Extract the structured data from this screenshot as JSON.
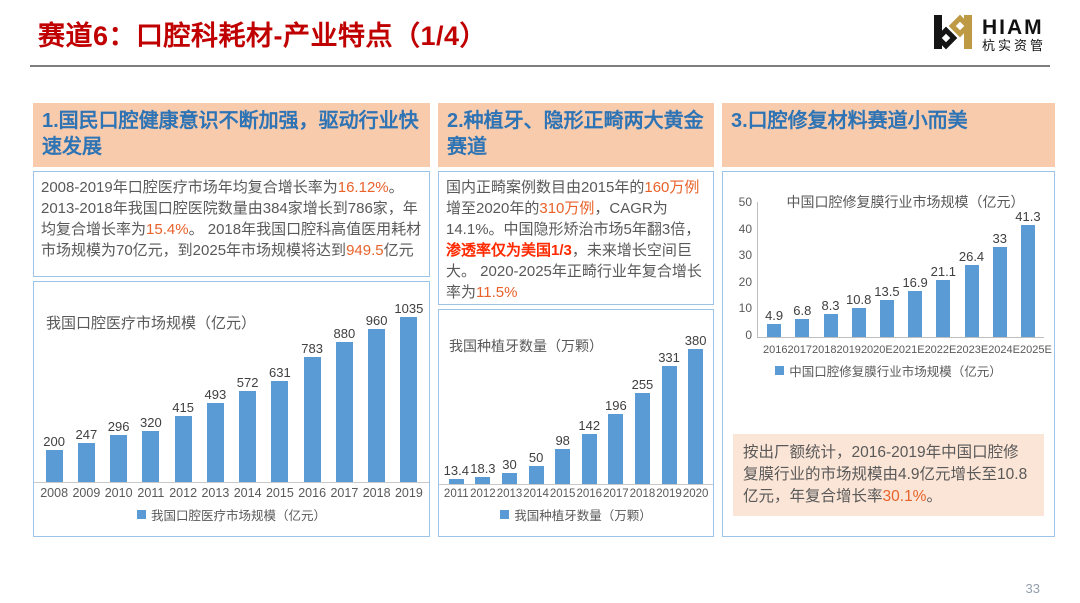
{
  "page": {
    "title": "赛道6：口腔科耗材-产业特点（1/4）",
    "page_number": "33"
  },
  "logo": {
    "brand": "HIAM",
    "brand_cn": "杭实资管"
  },
  "colors": {
    "orange": "#E8622A",
    "red": "#FF2A00",
    "bar_blue": "#5B9BD5",
    "header_bg": "#F8CBAD",
    "header_text": "#2E74B5",
    "title_red": "#C00000",
    "note_bg": "#FBE5D6",
    "border_blue": "#9DC3E6"
  },
  "panels": [
    {
      "header": "1.国民口腔健康意识不断加强，驱动行业快速发展",
      "body": [
        {
          "t": "2008-2019年口腔医疗市场年均复合增长率为"
        },
        {
          "t": "16.12%",
          "c": "orange"
        },
        {
          "t": "。2013-2018年我国口腔医院数量由384家增长到786家，年均复合增长率为"
        },
        {
          "t": "15.4%",
          "c": "orange"
        },
        {
          "t": "。 2018年我国口腔科高值医用耗材市场规模为70亿元，到2025年市场规模将达到"
        },
        {
          "t": "949.5",
          "c": "orange"
        },
        {
          "t": "亿元"
        }
      ]
    },
    {
      "header": "2.种植牙、隐形正畸两大黄金赛道",
      "body": [
        {
          "t": "国内正畸案例数目由2015年的"
        },
        {
          "t": "160万例",
          "c": "orange"
        },
        {
          "t": "增至2020年的"
        },
        {
          "t": "310万例",
          "c": "orange"
        },
        {
          "t": "，CAGR为14.1%。中国隐形矫治市场5年翻3倍，"
        },
        {
          "t": "渗透率仅为美国1/3",
          "c": "red",
          "b": 1
        },
        {
          "t": "，未来增长空间巨大。 2020-2025年正畸行业年复合增长率为"
        },
        {
          "t": "11.5%",
          "c": "orange"
        }
      ]
    },
    {
      "header": "3.口腔修复材料赛道小而美",
      "note": [
        {
          "t": "按出厂额统计，2016-2019年中国口腔修复膜行业的市场规模由4.9亿元增长至10.8亿元，年复合增长率"
        },
        {
          "t": "30.1%",
          "c": "orange"
        },
        {
          "t": "。"
        }
      ]
    }
  ],
  "chart_data": [
    {
      "type": "bar",
      "title": "我国口腔医疗市场规模（亿元）",
      "categories": [
        "2008",
        "2009",
        "2010",
        "2011",
        "2012",
        "2013",
        "2014",
        "2015",
        "2016",
        "2017",
        "2018",
        "2019"
      ],
      "values": [
        200,
        247,
        296,
        320,
        415,
        493,
        572,
        631,
        783,
        880,
        960,
        1035
      ],
      "legend": "我国口腔医疗市场规模（亿元）",
      "xlabel": "",
      "ylabel": "",
      "ylim": [
        0,
        1035
      ],
      "grid": false,
      "legend_position": "bottom",
      "bar_color": "#5B9BD5"
    },
    {
      "type": "bar",
      "title": "我国种植牙数量（万颗）",
      "categories": [
        "2011",
        "2012",
        "2013",
        "2014",
        "2015",
        "2016",
        "2017",
        "2018",
        "2019",
        "2020"
      ],
      "values": [
        13.4,
        18.3,
        30,
        50,
        98,
        142,
        196,
        255,
        331,
        380
      ],
      "legend": "我国种植牙数量（万颗）",
      "xlabel": "",
      "ylabel": "",
      "ylim": [
        0,
        380
      ],
      "grid": false,
      "legend_position": "bottom",
      "bar_color": "#5B9BD5"
    },
    {
      "type": "bar",
      "title": "中国口腔修复膜行业市场规模（亿元）",
      "categories": [
        "2016",
        "2017",
        "2018",
        "2019",
        "2020E",
        "2021E",
        "2022E",
        "2023E",
        "2024E",
        "2025E"
      ],
      "values": [
        4.9,
        6.8,
        8.3,
        10.8,
        13.5,
        16.9,
        21.1,
        26.4,
        33,
        41.3
      ],
      "legend": "中国口腔修复膜行业市场规模（亿元）",
      "xlabel": "",
      "ylabel": "",
      "ylim": [
        0,
        50
      ],
      "yticks": [
        0,
        10,
        20,
        30,
        40,
        50
      ],
      "grid": false,
      "legend_position": "bottom",
      "bar_color": "#5B9BD5"
    }
  ]
}
